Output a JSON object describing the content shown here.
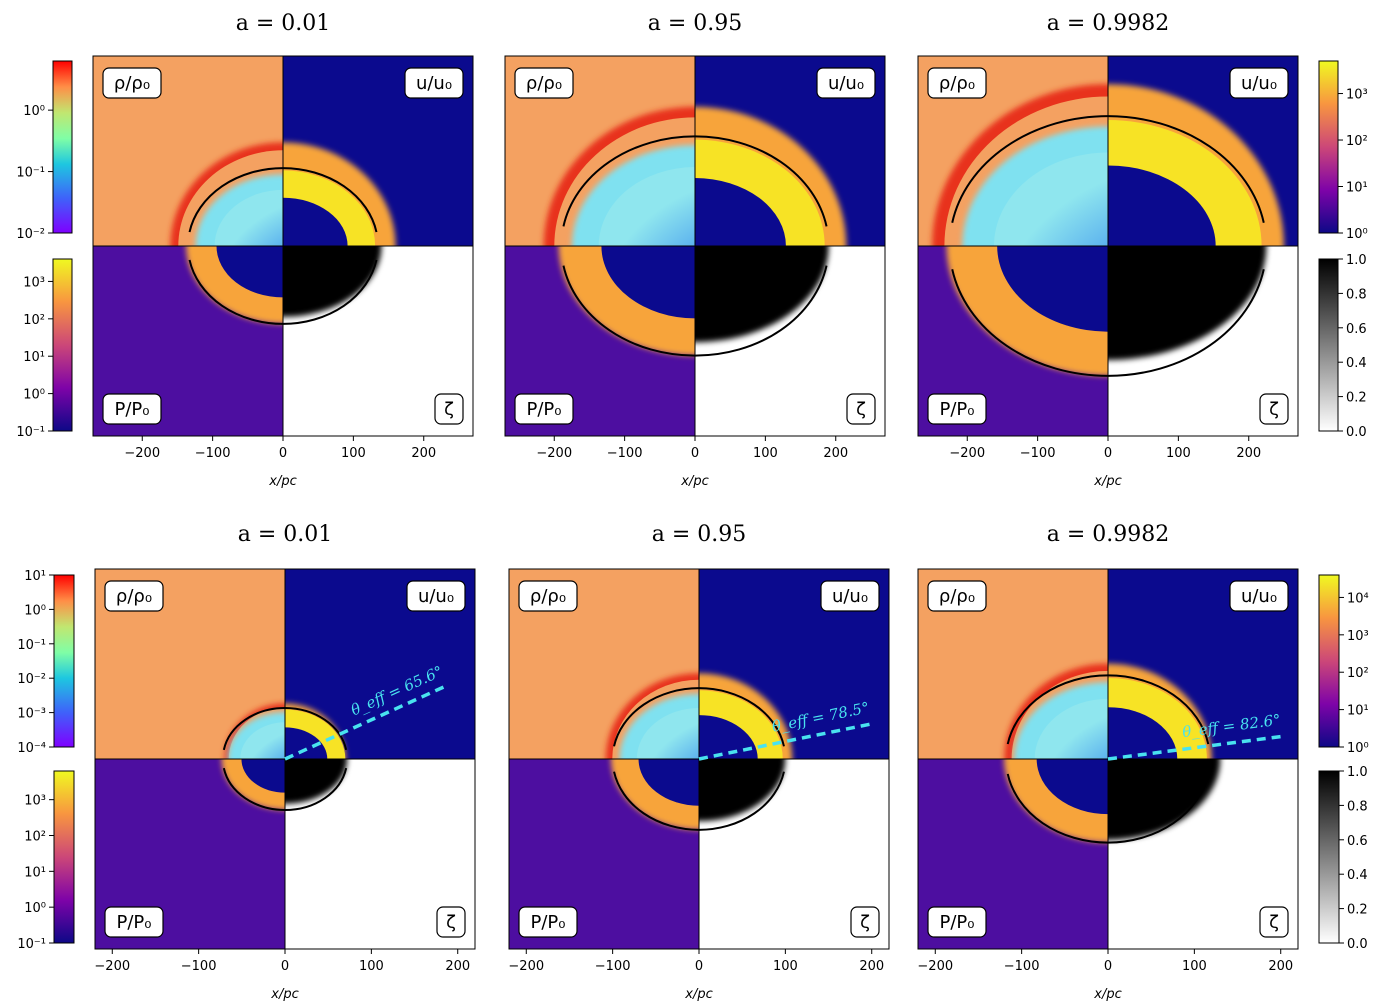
{
  "chart_data": {
    "type": "heatmap",
    "quadrant_labels": [
      "ρ/ρ₀",
      "u/u₀",
      "P/P₀",
      "ζ"
    ],
    "rows": [
      {
        "panels": [
          {
            "title": "a = 0.01",
            "xticks": [
              -200,
              -100,
              0,
              100,
              200
            ],
            "xlabel": "x/pc",
            "xlim": [
              -270,
              270
            ],
            "shell_radius": 135,
            "density_ring": 160,
            "zeta_extent": 140
          },
          {
            "title": "a = 0.95",
            "xticks": [
              -200,
              -100,
              0,
              100,
              200
            ],
            "xlabel": "x/pc",
            "xlim": [
              -270,
              270
            ],
            "shell_radius": 190,
            "density_ring": 215,
            "zeta_extent": 190
          },
          {
            "title": "a = 0.9982",
            "xticks": [
              -200,
              -100,
              0,
              100,
              200
            ],
            "xlabel": "x/pc",
            "xlim": [
              -270,
              270
            ],
            "shell_radius": 225,
            "density_ring": 250,
            "zeta_extent": 225
          }
        ],
        "left_colorbars": [
          {
            "quantity": "ρ/ρ₀",
            "scale": "log",
            "cmap": "rainbow",
            "ticks": [
              "10⁰",
              "10⁻¹",
              "10⁻²"
            ],
            "tick_values": [
              0,
              -1,
              -2
            ],
            "range": [
              -2,
              0.8
            ]
          },
          {
            "quantity": "P/P₀",
            "scale": "log",
            "cmap": "plasma",
            "ticks": [
              "10³",
              "10²",
              "10¹",
              "10⁰",
              "10⁻¹"
            ],
            "tick_values": [
              3,
              2,
              1,
              0,
              -1
            ],
            "range": [
              -1,
              3.6
            ]
          }
        ],
        "right_colorbars": [
          {
            "quantity": "u/u₀",
            "scale": "log",
            "cmap": "plasma",
            "ticks": [
              "10³",
              "10²",
              "10¹",
              "10⁰"
            ],
            "tick_values": [
              3,
              2,
              1,
              0
            ],
            "range": [
              0,
              3.7
            ]
          },
          {
            "quantity": "ζ",
            "scale": "linear",
            "cmap": "gray_r",
            "ticks": [
              "1.0",
              "0.8",
              "0.6",
              "0.4",
              "0.2",
              "0.0"
            ],
            "tick_values": [
              1,
              0.8,
              0.6,
              0.4,
              0.2,
              0
            ],
            "range": [
              0,
              1
            ]
          }
        ]
      },
      {
        "panels": [
          {
            "title": "a = 0.01",
            "xticks": [
              -200,
              -100,
              0,
              100,
              200
            ],
            "xlabel": "x/pc",
            "xlim": [
              -220,
              220
            ],
            "shell_radius": 72,
            "density_ring": 70,
            "zeta_extent": 72,
            "jet_annotation": "θ_eff = 65.6°",
            "jet_angle_deg": 24.4
          },
          {
            "title": "a = 0.95",
            "xticks": [
              -200,
              -100,
              0,
              100,
              200
            ],
            "xlabel": "x/pc",
            "xlim": [
              -220,
              220
            ],
            "shell_radius": 100,
            "density_ring": 108,
            "zeta_extent": 100,
            "jet_annotation": "θ_eff = 78.5°",
            "jet_angle_deg": 11.5
          },
          {
            "title": "a = 0.9982",
            "xticks": [
              -200,
              -100,
              0,
              100,
              200
            ],
            "xlabel": "x/pc",
            "xlim": [
              -220,
              220
            ],
            "shell_radius": 118,
            "density_ring": 120,
            "zeta_extent": 130,
            "jet_annotation": "θ_eff = 82.6°",
            "jet_angle_deg": 7.4
          }
        ],
        "left_colorbars": [
          {
            "quantity": "ρ/ρ₀",
            "scale": "log",
            "cmap": "rainbow",
            "ticks": [
              "10¹",
              "10⁰",
              "10⁻¹",
              "10⁻²",
              "10⁻³",
              "10⁻⁴"
            ],
            "tick_values": [
              1,
              0,
              -1,
              -2,
              -3,
              -4
            ],
            "range": [
              -4,
              1
            ]
          },
          {
            "quantity": "P/P₀",
            "scale": "log",
            "cmap": "plasma",
            "ticks": [
              "10³",
              "10²",
              "10¹",
              "10⁰",
              "10⁻¹"
            ],
            "tick_values": [
              3,
              2,
              1,
              0,
              -1
            ],
            "range": [
              -1,
              3.8
            ]
          }
        ],
        "right_colorbars": [
          {
            "quantity": "u/u₀",
            "scale": "log",
            "cmap": "plasma",
            "ticks": [
              "10⁴",
              "10³",
              "10²",
              "10¹",
              "10⁰"
            ],
            "tick_values": [
              4,
              3,
              2,
              1,
              0
            ],
            "range": [
              0,
              4.6
            ]
          },
          {
            "quantity": "ζ",
            "scale": "linear",
            "cmap": "gray_r",
            "ticks": [
              "1.0",
              "0.8",
              "0.6",
              "0.4",
              "0.2",
              "0.0"
            ],
            "tick_values": [
              1,
              0.8,
              0.6,
              0.4,
              0.2,
              0
            ],
            "range": [
              0,
              1
            ]
          }
        ]
      }
    ]
  },
  "colors": {
    "ambient_density": "#f4a161",
    "velocity_background": "#0b0a8e",
    "pressure_background": "#4d0ea0",
    "shell_yellow": "#f7e325",
    "shell_orange": "#f7a43b",
    "cavity_cyan": "#7fe1f0",
    "cavity_blue": "#3a90ef",
    "zeta_black": "#000000",
    "jet_line": "#49e2ef"
  }
}
